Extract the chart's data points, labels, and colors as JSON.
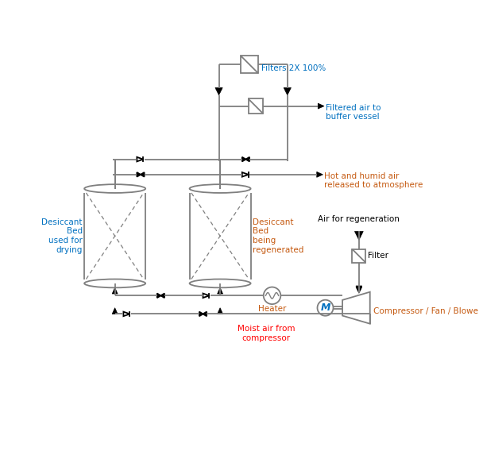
{
  "bg_color": "#ffffff",
  "line_color": "#7f7f7f",
  "black": "#000000",
  "blue_label": "#0070C0",
  "orange_label": "#C55A11",
  "red_label": "#FF0000",
  "dark_label": "#000000",
  "labels": {
    "filters": "Filters 2X 100%",
    "filtered_air": "Filtered air to\nbuffer vessel",
    "hot_humid": "Hot and humid air\nreleased to atmosphere",
    "air_regen": "Air for regeneration",
    "filter_small": "Filter",
    "compressor": "Compressor / Fan / Blower",
    "heater": "Heater",
    "moist_air": "Moist air from\ncompressor",
    "desiccant_left": "Desiccant\nBed\nused for\ndrying",
    "desiccant_right": "Desiccant\nBed\nbeing\nregenerated"
  }
}
